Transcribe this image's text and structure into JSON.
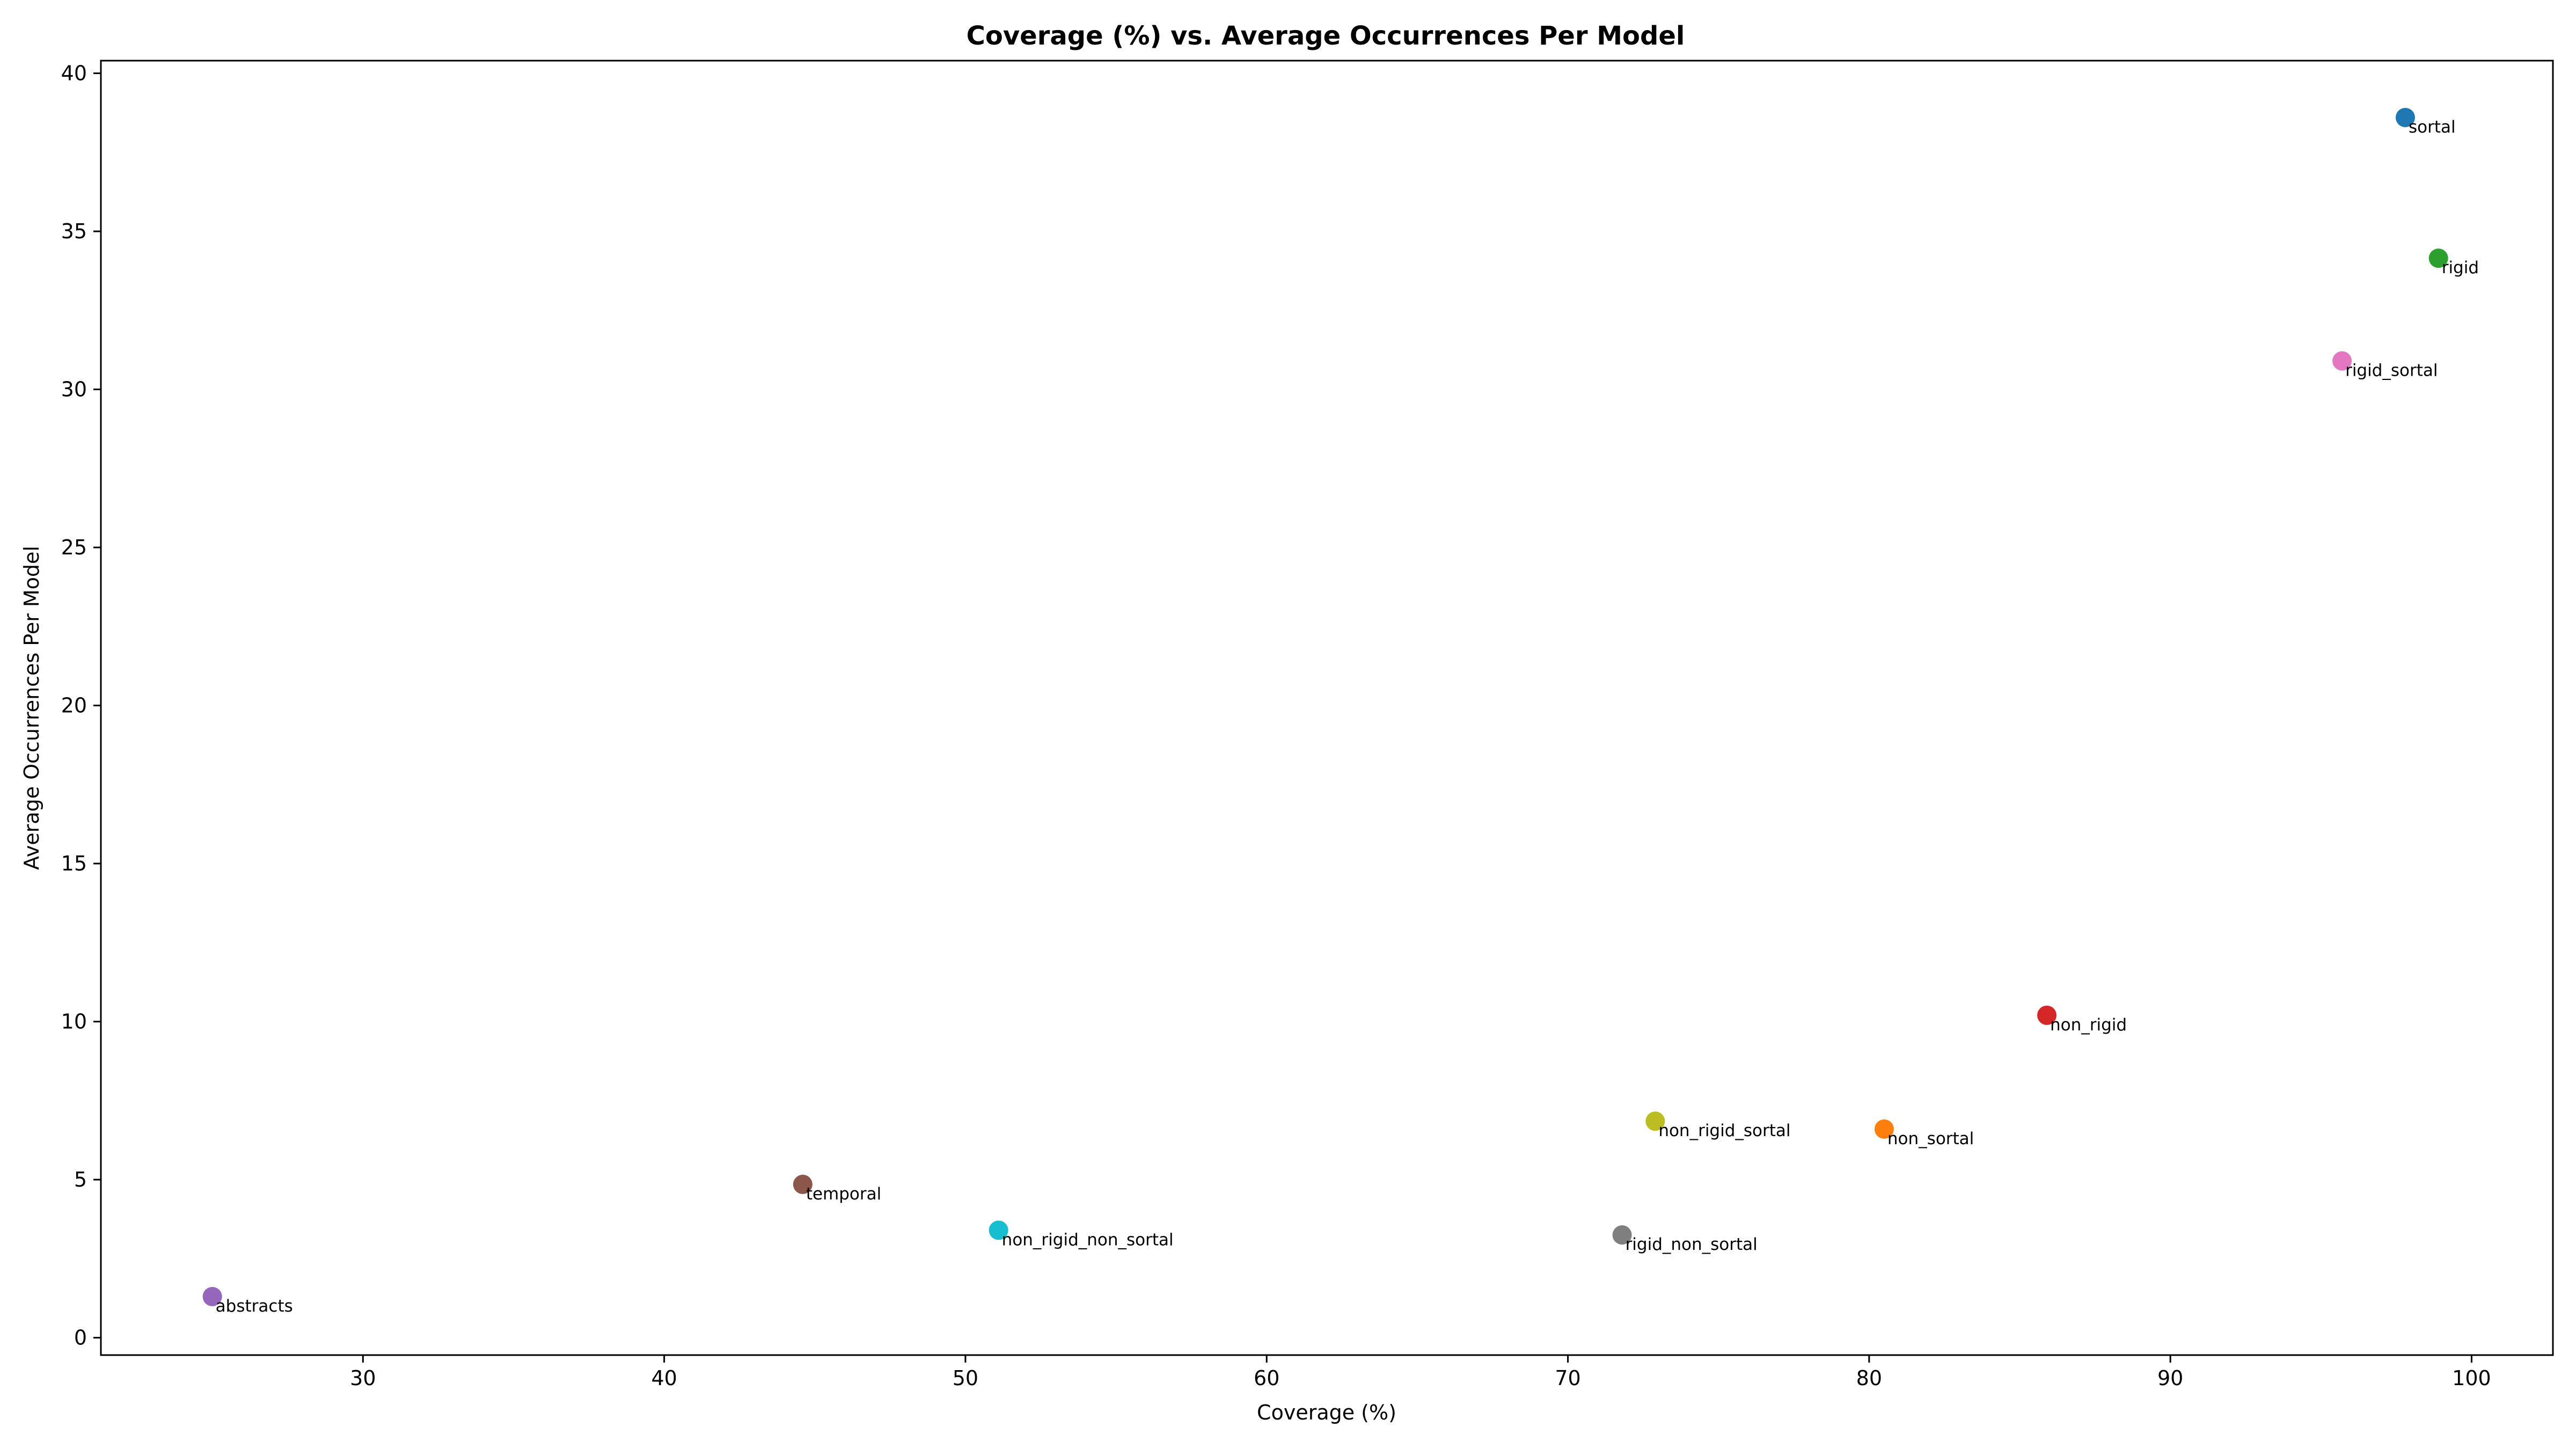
{
  "chart_data": {
    "type": "scatter",
    "title": "Coverage (%) vs. Average Occurrences Per Model",
    "xlabel": "Coverage (%)",
    "ylabel": "Average Occurrences Per Model",
    "xlim": [
      21.3,
      102.7
    ],
    "ylim": [
      -0.55,
      40.4
    ],
    "xticks": [
      30,
      40,
      50,
      60,
      70,
      80,
      90,
      100
    ],
    "yticks": [
      0,
      5,
      10,
      15,
      20,
      25,
      30,
      35,
      40
    ],
    "grid": false,
    "points": [
      {
        "label": "sortal",
        "x": 97.8,
        "y": 38.6,
        "color": "#1f77b4"
      },
      {
        "label": "non_sortal",
        "x": 80.5,
        "y": 6.6,
        "color": "#ff7f0e"
      },
      {
        "label": "rigid",
        "x": 98.9,
        "y": 34.15,
        "color": "#2ca02c"
      },
      {
        "label": "non_rigid",
        "x": 85.9,
        "y": 10.2,
        "color": "#d62728"
      },
      {
        "label": "abstracts",
        "x": 25.0,
        "y": 1.3,
        "color": "#9467bd"
      },
      {
        "label": "temporal",
        "x": 44.6,
        "y": 4.85,
        "color": "#8c564b"
      },
      {
        "label": "rigid_sortal",
        "x": 95.7,
        "y": 30.9,
        "color": "#e377c2"
      },
      {
        "label": "rigid_non_sortal",
        "x": 71.8,
        "y": 3.25,
        "color": "#7f7f7f"
      },
      {
        "label": "non_rigid_sortal",
        "x": 72.9,
        "y": 6.85,
        "color": "#bcbd22"
      },
      {
        "label": "non_rigid_non_sortal",
        "x": 51.1,
        "y": 3.4,
        "color": "#17becf"
      }
    ]
  }
}
